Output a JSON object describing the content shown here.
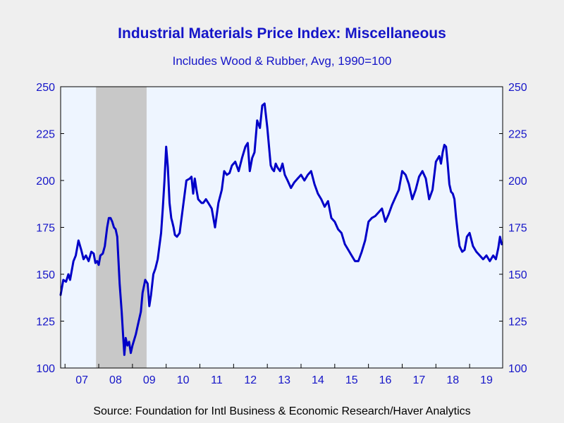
{
  "chart_data": {
    "type": "line",
    "title": "Industrial Materials Price Index: Miscellaneous",
    "subtitle": "Includes Wood & Rubber, Avg, 1990=100",
    "source": "Source:  Foundation for Intl Business & Economic Research/Haver Analytics",
    "x_tick_labels": [
      "07",
      "08",
      "09",
      "10",
      "11",
      "12",
      "13",
      "14",
      "15",
      "16",
      "17",
      "18",
      "19"
    ],
    "y_ticks": [
      100,
      125,
      150,
      175,
      200,
      225,
      250
    ],
    "ylim": [
      100,
      250
    ],
    "xlim": [
      2006.87,
      2019.98
    ],
    "recession_band": [
      2007.92,
      2009.42
    ],
    "grid": false,
    "legend": "none",
    "colors": {
      "line": "#0000c8",
      "axis_text": "#1515c8",
      "plot_background": "#eef5ff",
      "recession": "#c8c8c8"
    },
    "series": [
      {
        "x": [
          2006.87,
          2006.95,
          2007.03,
          2007.1,
          2007.15,
          2007.2,
          2007.25,
          2007.32,
          2007.4,
          2007.48,
          2007.55,
          2007.62,
          2007.7,
          2007.78,
          2007.85,
          2007.9,
          2007.95,
          2008.0,
          2008.05,
          2008.12,
          2008.18,
          2008.25,
          2008.3,
          2008.35,
          2008.4,
          2008.45,
          2008.5,
          2008.55,
          2008.62,
          2008.68,
          2008.72,
          2008.76,
          2008.8,
          2008.85,
          2008.9,
          2008.95,
          2009.0,
          2009.05,
          2009.1,
          2009.15,
          2009.2,
          2009.25,
          2009.3,
          2009.38,
          2009.45,
          2009.5,
          2009.55,
          2009.62,
          2009.68,
          2009.75,
          2009.8,
          2009.85,
          2009.9,
          2009.95,
          2010.0,
          2010.05,
          2010.1,
          2010.15,
          2010.18,
          2010.22,
          2010.26,
          2010.32,
          2010.4,
          2010.5,
          2010.6,
          2010.7,
          2010.75,
          2010.8,
          2010.85,
          2010.9,
          2010.95,
          2011.0,
          2011.05,
          2011.1,
          2011.18,
          2011.25,
          2011.35,
          2011.45,
          2011.55,
          2011.65,
          2011.72,
          2011.8,
          2011.88,
          2011.95,
          2012.05,
          2012.15,
          2012.25,
          2012.35,
          2012.42,
          2012.48,
          2012.55,
          2012.62,
          2012.7,
          2012.78,
          2012.85,
          2012.92,
          2013.0,
          2013.05,
          2013.1,
          2013.15,
          2013.2,
          2013.25,
          2013.3,
          2013.38,
          2013.45,
          2013.52,
          2013.6,
          2013.7,
          2013.8,
          2013.9,
          2014.0,
          2014.1,
          2014.2,
          2014.3,
          2014.4,
          2014.5,
          2014.6,
          2014.7,
          2014.8,
          2014.9,
          2015.0,
          2015.1,
          2015.2,
          2015.3,
          2015.4,
          2015.5,
          2015.6,
          2015.7,
          2015.8,
          2015.9,
          2016.0,
          2016.1,
          2016.2,
          2016.3,
          2016.4,
          2016.5,
          2016.6,
          2016.7,
          2016.8,
          2016.9,
          2017.0,
          2017.1,
          2017.2,
          2017.3,
          2017.4,
          2017.5,
          2017.6,
          2017.7,
          2017.8,
          2017.9,
          2018.0,
          2018.1,
          2018.15,
          2018.2,
          2018.25,
          2018.3,
          2018.35,
          2018.4,
          2018.45,
          2018.5,
          2018.55,
          2018.6,
          2018.65,
          2018.7,
          2018.78,
          2018.85,
          2018.92,
          2019.0,
          2019.1,
          2019.2,
          2019.3,
          2019.4,
          2019.5,
          2019.6,
          2019.7,
          2019.78,
          2019.85,
          2019.9,
          2019.95
        ],
        "y": [
          139,
          147,
          146,
          150,
          147,
          152,
          157,
          160,
          168,
          163,
          158,
          160,
          157,
          162,
          161,
          156,
          157,
          155,
          160,
          161,
          165,
          175,
          180,
          180,
          178,
          175,
          174,
          170,
          145,
          130,
          118,
          107,
          116,
          112,
          114,
          108,
          112,
          115,
          118,
          122,
          126,
          130,
          140,
          147,
          145,
          133,
          139,
          150,
          153,
          158,
          165,
          172,
          185,
          200,
          218,
          207,
          188,
          180,
          178,
          175,
          171,
          170,
          172,
          186,
          200,
          201,
          202,
          193,
          201,
          195,
          190,
          189,
          188,
          188,
          190,
          188,
          185,
          175,
          188,
          195,
          205,
          203,
          204,
          208,
          210,
          205,
          212,
          218,
          220,
          205,
          212,
          215,
          232,
          228,
          240,
          241,
          228,
          218,
          208,
          206,
          205,
          209,
          207,
          205,
          209,
          203,
          200,
          196,
          199,
          201,
          203,
          200,
          203,
          205,
          198,
          193,
          190,
          186,
          189,
          180,
          178,
          174,
          172,
          166,
          163,
          160,
          157,
          157,
          162,
          168,
          178,
          180,
          181,
          183,
          185,
          178,
          182,
          187,
          191,
          195,
          205,
          203,
          198,
          190,
          195,
          202,
          205,
          201,
          190,
          195,
          210,
          213,
          209,
          215,
          219,
          218,
          209,
          198,
          194,
          193,
          190,
          180,
          172,
          165,
          162,
          163,
          170,
          172,
          165,
          162,
          160,
          158,
          160,
          157,
          160,
          158,
          164,
          170,
          166
        ]
      }
    ]
  }
}
